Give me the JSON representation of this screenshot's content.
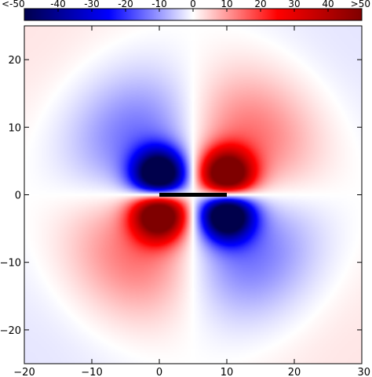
{
  "chart_data": {
    "type": "heatmap",
    "title": "",
    "xlabel": "",
    "ylabel": "",
    "xlim": [
      -20,
      30
    ],
    "ylim": [
      -25,
      25
    ],
    "x_ticks": [
      -20,
      -10,
      0,
      10,
      20,
      30
    ],
    "x_tick_labels": [
      "−20",
      "−10",
      "0",
      "10",
      "20",
      "30"
    ],
    "y_ticks": [
      -20,
      -10,
      0,
      10,
      20
    ],
    "y_tick_labels": [
      "−20",
      "−10",
      "0",
      "10",
      "20"
    ],
    "colorbar": {
      "range": [
        -50,
        50
      ],
      "ticks": [
        -50,
        -40,
        -30,
        -20,
        -10,
        0,
        10,
        20,
        30,
        40,
        50
      ],
      "tick_labels": [
        "<-50",
        "-40",
        "-30",
        "-20",
        "-10",
        "0",
        "10",
        "20",
        "30",
        "40",
        ">50"
      ],
      "colors": [
        "#00004c",
        "#0000ff",
        "#ffffff",
        "#ff0000",
        "#7f0000"
      ]
    },
    "segment": {
      "x": [
        0,
        10
      ],
      "y": [
        0,
        0
      ],
      "color": "#000000"
    },
    "grid": false,
    "legend": "none"
  }
}
